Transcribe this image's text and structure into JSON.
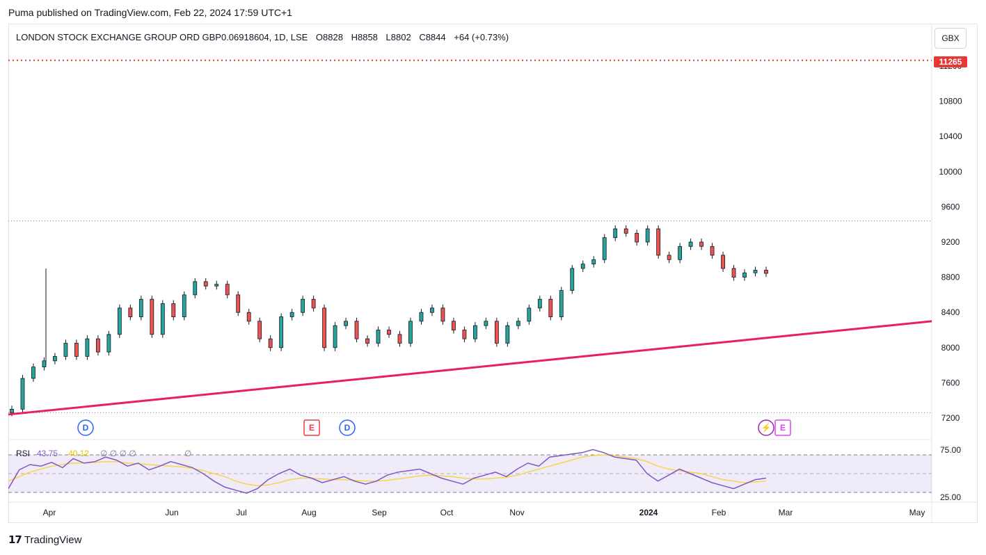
{
  "caption": "Puma published on TradingView.com, Feb 22, 2024 17:59 UTC+1",
  "legend": {
    "symbol": "LONDON STOCK EXCHANGE GROUP ORD GBP0.06918604, 1D, LSE",
    "open": "O8828",
    "high": "H8858",
    "low": "L8802",
    "close": "C8844",
    "change": "+64 (+0.73%)"
  },
  "currency": "GBX",
  "price_label": "11265",
  "brand": "TradingView",
  "colors": {
    "up": "#26a69a",
    "down": "#ef5350",
    "candle_body": "#131722",
    "trendline": "#e91e63",
    "rsi": "#7e57c2",
    "rsi_ma": "#f7d54a",
    "resistance": "#e53935"
  },
  "chart_data": {
    "type": "candlestick",
    "price_axis": {
      "ticks": [
        7200,
        7600,
        8000,
        8400,
        8800,
        9200,
        9600,
        10000,
        10400,
        10800,
        11200
      ],
      "range": [
        7150,
        11300
      ]
    },
    "time_axis": {
      "labels": [
        "Apr",
        "Jun",
        "Jul",
        "Aug",
        "Sep",
        "Oct",
        "Nov",
        "2024",
        "Feb",
        "Mar",
        "May"
      ]
    },
    "horizontal_lines": [
      {
        "price": 11265,
        "style": "dotted",
        "color": "#e53935"
      },
      {
        "price": 9440,
        "style": "dotted",
        "color": "#787b86"
      },
      {
        "price": 7260,
        "style": "dotted",
        "color": "#787b86"
      }
    ],
    "trendline": {
      "from_price": 7240,
      "to_price": 8300
    },
    "close_path": [
      [
        "Mar",
        7300
      ],
      [
        "Mar",
        7650
      ],
      [
        "Apr",
        7780
      ],
      [
        "Apr",
        7850
      ],
      [
        "Apr",
        7900
      ],
      [
        "Apr",
        8050
      ],
      [
        "Apr",
        7900
      ],
      [
        "Apr",
        8100
      ],
      [
        "Apr",
        7950
      ],
      [
        "Apr",
        8150
      ],
      [
        "May",
        8450
      ],
      [
        "May",
        8350
      ],
      [
        "May",
        8550
      ],
      [
        "May",
        8150
      ],
      [
        "May",
        8500
      ],
      [
        "May",
        8350
      ],
      [
        "May",
        8600
      ],
      [
        "Jun",
        8750
      ],
      [
        "Jun",
        8700
      ],
      [
        "Jun",
        8720
      ],
      [
        "Jun",
        8600
      ],
      [
        "Jun",
        8400
      ],
      [
        "Jul",
        8300
      ],
      [
        "Jul",
        8100
      ],
      [
        "Jul",
        8000
      ],
      [
        "Jul",
        8350
      ],
      [
        "Jul",
        8400
      ],
      [
        "Jul",
        8550
      ],
      [
        "Aug",
        8450
      ],
      [
        "Aug",
        8000
      ],
      [
        "Aug",
        8250
      ],
      [
        "Aug",
        8300
      ],
      [
        "Aug",
        8100
      ],
      [
        "Aug",
        8050
      ],
      [
        "Sep",
        8200
      ],
      [
        "Sep",
        8150
      ],
      [
        "Sep",
        8050
      ],
      [
        "Sep",
        8300
      ],
      [
        "Sep",
        8400
      ],
      [
        "Sep",
        8450
      ],
      [
        "Oct",
        8300
      ],
      [
        "Oct",
        8200
      ],
      [
        "Oct",
        8100
      ],
      [
        "Oct",
        8250
      ],
      [
        "Oct",
        8300
      ],
      [
        "Oct",
        8050
      ],
      [
        "Oct",
        8250
      ],
      [
        "Nov",
        8300
      ],
      [
        "Nov",
        8450
      ],
      [
        "Nov",
        8550
      ],
      [
        "Nov",
        8350
      ],
      [
        "Nov",
        8650
      ],
      [
        "Nov",
        8900
      ],
      [
        "Nov",
        8950
      ],
      [
        "Dec",
        9000
      ],
      [
        "Dec",
        9250
      ],
      [
        "Dec",
        9350
      ],
      [
        "Dec",
        9300
      ],
      [
        "Dec",
        9200
      ],
      [
        "Dec",
        9350
      ],
      [
        "Jan",
        9050
      ],
      [
        "Jan",
        9000
      ],
      [
        "Jan",
        9150
      ],
      [
        "Jan",
        9200
      ],
      [
        "Jan",
        9150
      ],
      [
        "Jan",
        9050
      ],
      [
        "Feb",
        8900
      ],
      [
        "Feb",
        8800
      ],
      [
        "Feb",
        8850
      ],
      [
        "Feb",
        8880
      ],
      [
        "Feb",
        8844
      ]
    ],
    "events": [
      {
        "label": "D",
        "type": "dividend"
      },
      {
        "label": "E",
        "type": "earnings"
      },
      {
        "label": "D",
        "type": "dividend"
      },
      {
        "label": "⚡",
        "type": "split"
      },
      {
        "label": "E",
        "type": "earnings"
      }
    ],
    "rsi": {
      "label": "RSI",
      "value": "43.75",
      "ma_value": "40.12",
      "extra": "∅ ∅ ∅ ∅",
      "extra2": "∅",
      "levels": [
        75,
        25
      ],
      "tick_labels": [
        "75.00",
        "25.00"
      ],
      "line": [
        30,
        55,
        62,
        60,
        65,
        58,
        70,
        64,
        66,
        72,
        68,
        60,
        64,
        55,
        60,
        66,
        62,
        58,
        50,
        40,
        32,
        28,
        24,
        30,
        42,
        50,
        56,
        48,
        44,
        38,
        42,
        46,
        40,
        36,
        40,
        48,
        52,
        54,
        56,
        50,
        44,
        40,
        36,
        44,
        48,
        52,
        46,
        56,
        64,
        60,
        72,
        74,
        76,
        78,
        82,
        78,
        72,
        70,
        68,
        50,
        40,
        48,
        56,
        50,
        44,
        38,
        34,
        30,
        36,
        42,
        44
      ],
      "ma": [
        40,
        46,
        52,
        56,
        60,
        62,
        64,
        64,
        65,
        66,
        66,
        64,
        63,
        62,
        61,
        60,
        59,
        57,
        54,
        50,
        46,
        40,
        36,
        34,
        35,
        38,
        42,
        44,
        44,
        43,
        42,
        42,
        41,
        40,
        40,
        41,
        43,
        45,
        47,
        48,
        47,
        46,
        44,
        43,
        43,
        44,
        45,
        48,
        52,
        56,
        60,
        64,
        68,
        72,
        74,
        75,
        74,
        72,
        70,
        66,
        60,
        56,
        54,
        52,
        50,
        46,
        42,
        40,
        38,
        39,
        40
      ]
    }
  }
}
